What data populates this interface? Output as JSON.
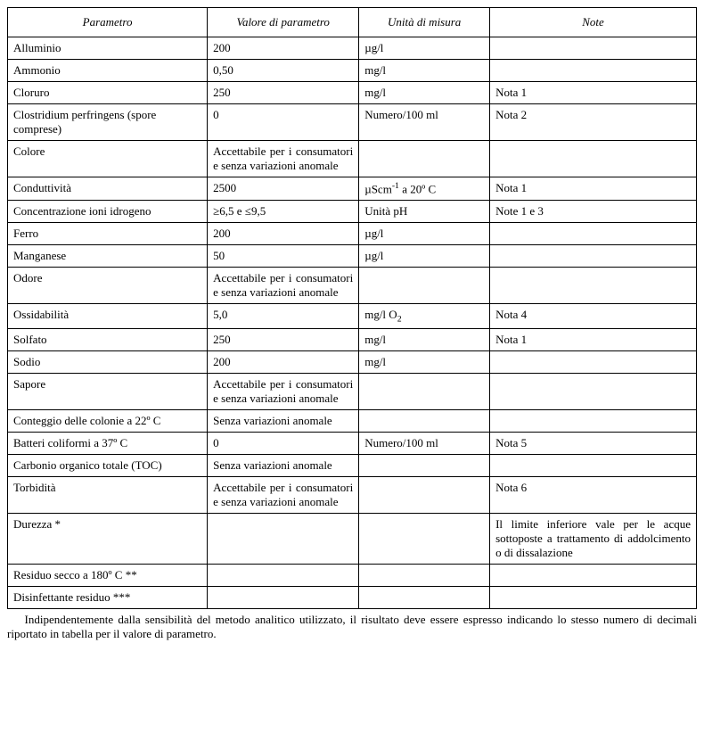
{
  "table": {
    "headers": [
      "Parametro",
      "Valore di parametro",
      "Unità di misura",
      "Note"
    ],
    "col_widths": [
      "29%",
      "22%",
      "19%",
      "30%"
    ],
    "border_color": "#000000",
    "background_color": "#ffffff",
    "font_family": "Georgia, 'Times New Roman', serif",
    "header_fontsize": 13,
    "cell_fontsize": 13,
    "rows": [
      {
        "param": "Alluminio",
        "value": "200",
        "unit": "µg/l",
        "note": ""
      },
      {
        "param": "Ammonio",
        "value": "0,50",
        "unit": "mg/l",
        "note": ""
      },
      {
        "param": "Cloruro",
        "value": "250",
        "unit": "mg/l",
        "note": "Nota 1"
      },
      {
        "param": "Clostridium perfringens (spore comprese)",
        "value": "0",
        "unit": "Numero/100 ml",
        "note": "Nota 2"
      },
      {
        "param": "Colore",
        "value": "Accettabile per i consumatori e senza variazioni anomale",
        "value_justify": true,
        "unit": "",
        "note": ""
      },
      {
        "param": "Conduttività",
        "value": "2500",
        "unit_html": "µScm<sup>-1</sup> a 20º C",
        "note": "Nota 1"
      },
      {
        "param": "Concentrazione ioni idrogeno",
        "value": "≥6,5 e ≤9,5",
        "unit": "Unità pH",
        "note": "Note 1 e 3"
      },
      {
        "param": "Ferro",
        "value": "200",
        "unit": "µg/l",
        "note": ""
      },
      {
        "param": "Manganese",
        "value": "50",
        "unit": "µg/l",
        "note": ""
      },
      {
        "param": "Odore",
        "value": "Accettabile per i consumatori e senza variazioni anomale",
        "value_justify": true,
        "unit": "",
        "note": ""
      },
      {
        "param": "Ossidabilità",
        "value": "5,0",
        "unit_html": "mg/l O<sub>2</sub>",
        "note": "Nota 4"
      },
      {
        "param": "Solfato",
        "value": "250",
        "unit": "mg/l",
        "note": "Nota 1"
      },
      {
        "param": "Sodio",
        "value": "200",
        "unit": "mg/l",
        "note": ""
      },
      {
        "param": "Sapore",
        "value": "Accettabile per i consumatori e senza variazioni anomale",
        "value_justify": true,
        "unit": "",
        "note": ""
      },
      {
        "param": "Conteggio delle colonie a 22º C",
        "value": "Senza variazioni anomale",
        "unit": "",
        "note": ""
      },
      {
        "param": "Batteri coliformi a 37º C",
        "value": "0",
        "unit": "Numero/100 ml",
        "note": "Nota 5"
      },
      {
        "param": "Carbonio organico totale (TOC)",
        "value": "Senza variazioni anomale",
        "unit": "",
        "note": ""
      },
      {
        "param": "Torbidità",
        "value": "Accettabile per i consumatori e senza variazioni anomale",
        "value_justify": true,
        "unit": "",
        "note": "Nota 6"
      },
      {
        "param": "Durezza *",
        "value": "",
        "unit": "",
        "note": "Il limite inferiore vale per le acque sottoposte a trattamento di addolcimento o di dissalazione",
        "note_justify": true
      },
      {
        "param": "Residuo secco a 180º C **",
        "value": "",
        "unit": "",
        "note": ""
      },
      {
        "param": "Disinfettante residuo ***",
        "value": "",
        "unit": "",
        "note": ""
      }
    ]
  },
  "footnote": "Indipendentemente dalla sensibilità del metodo analitico utilizzato, il risultato deve essere espresso indicando lo stesso numero di decimali riportato in tabella per il valore di parametro."
}
